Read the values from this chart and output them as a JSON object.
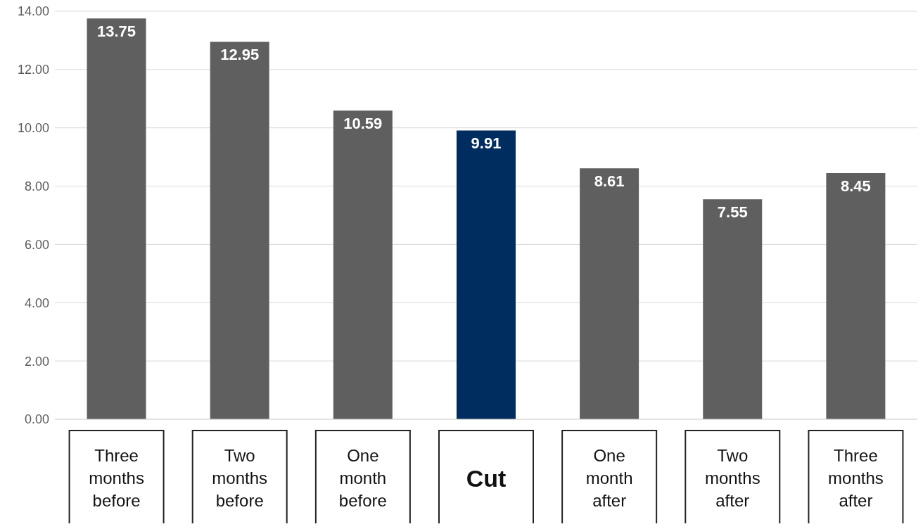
{
  "chart_data": {
    "type": "bar",
    "categories": [
      "Three months before",
      "Two months before",
      "One month before",
      "Cut",
      "One month after",
      "Two months after",
      "Three months after"
    ],
    "values": [
      13.75,
      12.95,
      10.59,
      9.91,
      8.61,
      7.55,
      8.45
    ],
    "colors": [
      "#5f5f5f",
      "#5f5f5f",
      "#5f5f5f",
      "#002d5f",
      "#5f5f5f",
      "#5f5f5f",
      "#5f5f5f"
    ],
    "ylim": [
      0,
      14
    ],
    "yticks": [
      {
        "value": 0,
        "label": "0.00"
      },
      {
        "value": 2,
        "label": "2.00"
      },
      {
        "value": 4,
        "label": "4.00"
      },
      {
        "value": 6,
        "label": "6.00"
      },
      {
        "value": 8,
        "label": "8.00"
      },
      {
        "value": 10,
        "label": "10.00"
      },
      {
        "value": 12,
        "label": "12.00"
      },
      {
        "value": 14,
        "label": "14.00"
      }
    ],
    "grid": "y",
    "data_labels": true,
    "legend": false
  }
}
